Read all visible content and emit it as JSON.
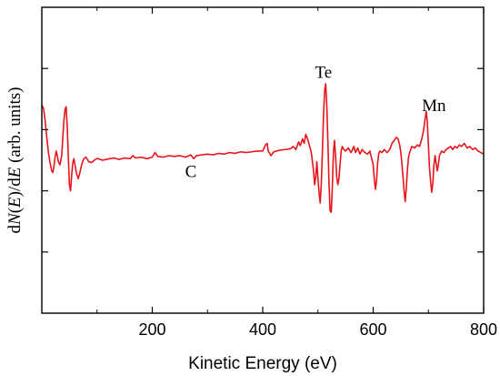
{
  "chart_data": {
    "type": "line",
    "title": "",
    "ylabel_parts": [
      "d",
      "N",
      "(",
      "E",
      ")/d",
      "E",
      " (arb. units)"
    ],
    "xlabel": "Kinetic Energy (eV)",
    "xlim": [
      0,
      800
    ],
    "ylim": [
      -1.0,
      1.0
    ],
    "xticks": [
      200,
      400,
      600,
      800
    ],
    "xtick_labels": [
      "200",
      "400",
      "600",
      "800"
    ],
    "minor_xticks": [
      100,
      300,
      500,
      700
    ],
    "yticks": [
      -0.6,
      -0.2,
      0.2,
      0.6
    ],
    "y_tick_labels_shown": false,
    "grid": false,
    "line_color": "#e8141c",
    "annotations": [
      {
        "text": "C",
        "x": 270,
        "y": -0.11
      },
      {
        "text": "Te",
        "x": 510,
        "y": 0.54
      },
      {
        "text": "Mn",
        "x": 710,
        "y": 0.32
      }
    ],
    "series": [
      {
        "name": "",
        "points": [
          [
            0,
            0.36
          ],
          [
            3,
            0.34
          ],
          [
            6,
            0.26
          ],
          [
            9,
            0.15
          ],
          [
            12,
            0.05
          ],
          [
            15,
            -0.02
          ],
          [
            18,
            -0.07
          ],
          [
            20,
            -0.08
          ],
          [
            22,
            -0.04
          ],
          [
            24,
            0.02
          ],
          [
            26,
            0.06
          ],
          [
            28,
            0.03
          ],
          [
            30,
            -0.01
          ],
          [
            33,
            -0.03
          ],
          [
            36,
            0.03
          ],
          [
            38,
            0.15
          ],
          [
            40,
            0.26
          ],
          [
            42,
            0.33
          ],
          [
            44,
            0.35
          ],
          [
            46,
            0.22
          ],
          [
            48,
            0.02
          ],
          [
            50,
            -0.16
          ],
          [
            52,
            -0.2
          ],
          [
            54,
            -0.1
          ],
          [
            56,
            -0.02
          ],
          [
            58,
            0.01
          ],
          [
            60,
            -0.03
          ],
          [
            63,
            -0.09
          ],
          [
            66,
            -0.12
          ],
          [
            69,
            -0.08
          ],
          [
            72,
            -0.03
          ],
          [
            76,
            0.01
          ],
          [
            80,
            0.02
          ],
          [
            85,
            -0.01
          ],
          [
            90,
            -0.015
          ],
          [
            95,
            0.0
          ],
          [
            100,
            0.012
          ],
          [
            110,
            0.0
          ],
          [
            120,
            0.008
          ],
          [
            130,
            0.015
          ],
          [
            140,
            0.005
          ],
          [
            150,
            0.015
          ],
          [
            160,
            0.01
          ],
          [
            165,
            0.03
          ],
          [
            170,
            0.015
          ],
          [
            180,
            0.02
          ],
          [
            190,
            0.01
          ],
          [
            200,
            0.02
          ],
          [
            205,
            0.05
          ],
          [
            210,
            0.025
          ],
          [
            220,
            0.02
          ],
          [
            230,
            0.03
          ],
          [
            240,
            0.025
          ],
          [
            250,
            0.03
          ],
          [
            260,
            0.02
          ],
          [
            270,
            0.035
          ],
          [
            275,
            0.01
          ],
          [
            280,
            0.03
          ],
          [
            290,
            0.035
          ],
          [
            300,
            0.04
          ],
          [
            310,
            0.035
          ],
          [
            320,
            0.045
          ],
          [
            330,
            0.04
          ],
          [
            340,
            0.05
          ],
          [
            350,
            0.045
          ],
          [
            360,
            0.055
          ],
          [
            370,
            0.05
          ],
          [
            380,
            0.055
          ],
          [
            390,
            0.06
          ],
          [
            400,
            0.06
          ],
          [
            405,
            0.1
          ],
          [
            408,
            0.11
          ],
          [
            410,
            0.06
          ],
          [
            415,
            0.03
          ],
          [
            420,
            0.055
          ],
          [
            430,
            0.065
          ],
          [
            440,
            0.07
          ],
          [
            450,
            0.075
          ],
          [
            455,
            0.09
          ],
          [
            460,
            0.07
          ],
          [
            465,
            0.12
          ],
          [
            468,
            0.095
          ],
          [
            472,
            0.14
          ],
          [
            475,
            0.11
          ],
          [
            478,
            0.17
          ],
          [
            482,
            0.13
          ],
          [
            485,
            0.09
          ],
          [
            488,
            0.05
          ],
          [
            490,
            -0.01
          ],
          [
            492,
            -0.07
          ],
          [
            494,
            -0.16
          ],
          [
            496,
            -0.11
          ],
          [
            498,
            -0.01
          ],
          [
            500,
            -0.12
          ],
          [
            502,
            -0.21
          ],
          [
            504,
            -0.28
          ],
          [
            506,
            -0.16
          ],
          [
            508,
            0.05
          ],
          [
            510,
            0.29
          ],
          [
            512,
            0.45
          ],
          [
            514,
            0.5
          ],
          [
            516,
            0.36
          ],
          [
            518,
            0.12
          ],
          [
            520,
            -0.15
          ],
          [
            522,
            -0.33
          ],
          [
            524,
            -0.34
          ],
          [
            526,
            -0.18
          ],
          [
            528,
            0.05
          ],
          [
            530,
            0.13
          ],
          [
            532,
            0.02
          ],
          [
            534,
            -0.11
          ],
          [
            536,
            -0.16
          ],
          [
            538,
            -0.12
          ],
          [
            540,
            -0.03
          ],
          [
            542,
            0.06
          ],
          [
            544,
            0.09
          ],
          [
            547,
            0.07
          ],
          [
            550,
            0.06
          ],
          [
            555,
            0.08
          ],
          [
            560,
            0.05
          ],
          [
            565,
            0.09
          ],
          [
            568,
            0.05
          ],
          [
            572,
            0.08
          ],
          [
            576,
            0.04
          ],
          [
            580,
            0.07
          ],
          [
            585,
            0.05
          ],
          [
            590,
            0.04
          ],
          [
            594,
            0.06
          ],
          [
            598,
            0.0
          ],
          [
            600,
            -0.03
          ],
          [
            602,
            -0.12
          ],
          [
            604,
            -0.19
          ],
          [
            606,
            -0.14
          ],
          [
            608,
            -0.02
          ],
          [
            610,
            0.04
          ],
          [
            612,
            0.06
          ],
          [
            616,
            0.05
          ],
          [
            620,
            0.07
          ],
          [
            625,
            0.05
          ],
          [
            630,
            0.07
          ],
          [
            634,
            0.11
          ],
          [
            638,
            0.13
          ],
          [
            642,
            0.15
          ],
          [
            645,
            0.14
          ],
          [
            648,
            0.1
          ],
          [
            650,
            0.05
          ],
          [
            652,
            -0.02
          ],
          [
            654,
            -0.11
          ],
          [
            656,
            -0.2
          ],
          [
            658,
            -0.27
          ],
          [
            660,
            -0.18
          ],
          [
            662,
            -0.06
          ],
          [
            664,
            0.02
          ],
          [
            666,
            0.05
          ],
          [
            670,
            0.09
          ],
          [
            675,
            0.08
          ],
          [
            680,
            0.1
          ],
          [
            684,
            0.09
          ],
          [
            688,
            0.14
          ],
          [
            691,
            0.19
          ],
          [
            694,
            0.27
          ],
          [
            696,
            0.32
          ],
          [
            698,
            0.25
          ],
          [
            700,
            0.1
          ],
          [
            702,
            -0.05
          ],
          [
            704,
            -0.14
          ],
          [
            706,
            -0.21
          ],
          [
            708,
            -0.15
          ],
          [
            710,
            -0.03
          ],
          [
            712,
            0.03
          ],
          [
            714,
            -0.02
          ],
          [
            716,
            -0.07
          ],
          [
            718,
            -0.03
          ],
          [
            720,
            0.03
          ],
          [
            724,
            0.06
          ],
          [
            728,
            0.05
          ],
          [
            732,
            0.07
          ],
          [
            736,
            0.08
          ],
          [
            740,
            0.09
          ],
          [
            744,
            0.07
          ],
          [
            748,
            0.09
          ],
          [
            752,
            0.08
          ],
          [
            756,
            0.1
          ],
          [
            760,
            0.09
          ],
          [
            765,
            0.11
          ],
          [
            770,
            0.08
          ],
          [
            775,
            0.09
          ],
          [
            780,
            0.07
          ],
          [
            785,
            0.08
          ],
          [
            790,
            0.06
          ],
          [
            795,
            0.05
          ],
          [
            800,
            0.04
          ]
        ]
      }
    ]
  }
}
